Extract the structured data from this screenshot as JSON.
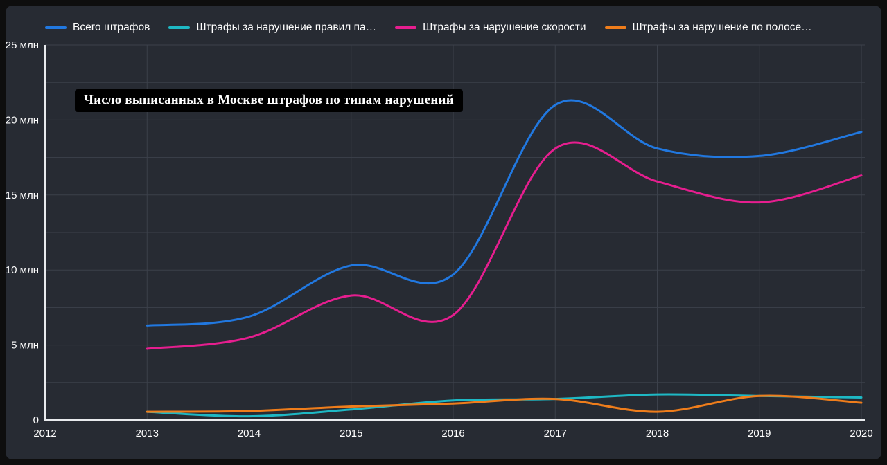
{
  "colors": {
    "background": "#0e0e0e",
    "panel": "#272b33",
    "grid": "#3c414b",
    "axis": "#e8eaed",
    "tick_text": "#ffffff",
    "title_bg": "#000000",
    "title_text": "#ffffff"
  },
  "chart_data": {
    "type": "line",
    "title": "Число выписанных в Москве штрафов по типам нарушений",
    "unit": "млн",
    "grid": true,
    "legend_position": "top",
    "x": [
      2013,
      2014,
      2015,
      2016,
      2017,
      2018,
      2019,
      2020
    ],
    "x_axis": {
      "min": 2012,
      "max": 2020,
      "tick_labels": [
        "2012",
        "2013",
        "2014",
        "2015",
        "2016",
        "2017",
        "2018",
        "2019",
        "2020"
      ]
    },
    "y_axis": {
      "min": 0,
      "max": 25,
      "grid_interval": 2.5,
      "ticks": [
        {
          "value": 0,
          "label": "0"
        },
        {
          "value": 5,
          "label": "5 млн"
        },
        {
          "value": 10,
          "label": "10 млн"
        },
        {
          "value": 15,
          "label": "15 млн"
        },
        {
          "value": 20,
          "label": "20 млн"
        },
        {
          "value": 25,
          "label": "25 млн"
        }
      ]
    },
    "series": [
      {
        "name": "Всего штрафов",
        "color": "#2178e0",
        "values_mln": [
          6.3,
          6.9,
          10.3,
          9.7,
          21.0,
          18.1,
          17.6,
          19.2
        ]
      },
      {
        "name": "Штрафы за нарушение правил па…",
        "color": "#1eb8c4",
        "values_mln": [
          0.55,
          0.25,
          0.7,
          1.3,
          1.4,
          1.7,
          1.6,
          1.5
        ]
      },
      {
        "name": "Штрафы за нарушение скорости",
        "color": "#e61e8f",
        "values_mln": [
          4.75,
          5.5,
          8.3,
          7.0,
          18.1,
          15.9,
          14.5,
          16.3
        ]
      },
      {
        "name": "Штрафы за нарушение по полосе…",
        "color": "#ef7d1b",
        "values_mln": [
          0.55,
          0.6,
          0.9,
          1.1,
          1.4,
          0.55,
          1.6,
          1.15
        ]
      }
    ]
  }
}
